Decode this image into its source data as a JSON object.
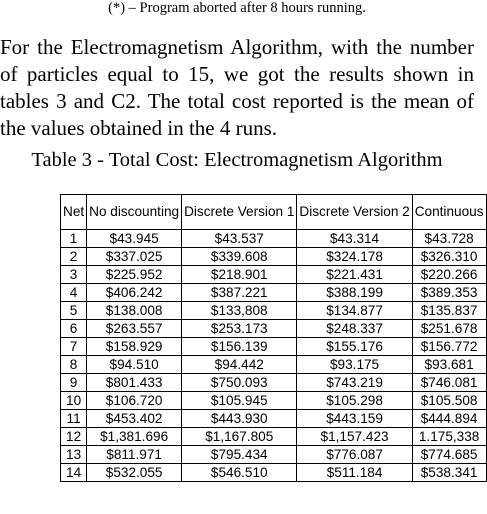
{
  "footnote": "(*) – Program aborted after 8 hours running.",
  "paragraph_lines": [
    "For the Electromagnetism Algorithm, with the number",
    "of particles equal to 15, we got the results shown in",
    "tables 3 and C2. The total cost reported is the mean of",
    "the values obtained in the 4 runs."
  ],
  "table_caption": "Table 3 - Total Cost: Electromagnetism Algorithm",
  "table": {
    "headers": [
      "Net",
      "No discounting",
      "Discrete Version 1",
      "Discrete Version 2",
      "Continuous"
    ],
    "rows": [
      [
        "1",
        "$43.945",
        "$43.537",
        "$43.314",
        "$43.728"
      ],
      [
        "2",
        "$337.025",
        "$339.608",
        "$324.178",
        "$326.310"
      ],
      [
        "3",
        "$225.952",
        "$218.901",
        "$221.431",
        "$220.266"
      ],
      [
        "4",
        "$406.242",
        "$387.221",
        "$388.199",
        "$389.353"
      ],
      [
        "5",
        "$138.008",
        "$133,808",
        "$134.877",
        "$135.837"
      ],
      [
        "6",
        "$263.557",
        "$253.173",
        "$248.337",
        "$251.678"
      ],
      [
        "7",
        "$158.929",
        "$156.139",
        "$155.176",
        "$156.772"
      ],
      [
        "8",
        "$94.510",
        "$94.442",
        "$93.175",
        "$93.681"
      ],
      [
        "9",
        "$801.433",
        "$750.093",
        "$743.219",
        "$746.081"
      ],
      [
        "10",
        "$106.720",
        "$105.945",
        "$105.298",
        "$105.508"
      ],
      [
        "11",
        "$453.402",
        "$443.930",
        "$443.159",
        "$444.894"
      ],
      [
        "12",
        "$1,381.696",
        "$1,167.805",
        "$1,157.423",
        "1.175,338"
      ],
      [
        "13",
        "$811.971",
        "$795.434",
        "$776.087",
        "$774.685"
      ],
      [
        "14",
        "$532.055",
        "$546.510",
        "$511.184",
        "$538.341"
      ]
    ]
  }
}
